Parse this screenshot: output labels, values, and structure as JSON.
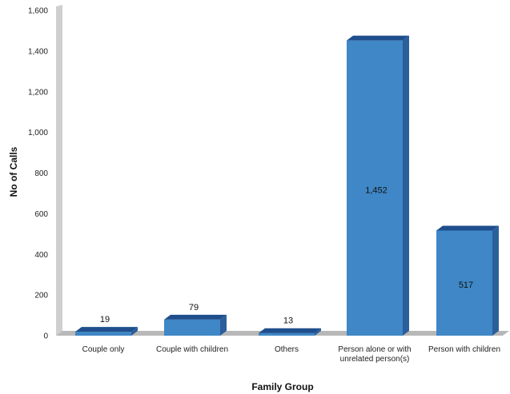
{
  "chart_data": {
    "type": "bar",
    "categories": [
      [
        "Couple only"
      ],
      [
        "Couple with children"
      ],
      [
        "Others"
      ],
      [
        "Person alone or with",
        "unrelated person(s)"
      ],
      [
        "Person with children"
      ]
    ],
    "values": [
      19,
      79,
      13,
      1452,
      517
    ],
    "value_labels": [
      "19",
      "79",
      "13",
      "1,452",
      "517"
    ],
    "ytick_labels": [
      "0",
      "200",
      "400",
      "600",
      "800",
      "1,000",
      "1,200",
      "1,400",
      "1,600"
    ],
    "ylim": [
      0,
      1600
    ],
    "xlabel": "Family Group",
    "ylabel": "No of Calls",
    "colors": {
      "bar_front": "#3f87c6",
      "bar_top": "#1f4e8c",
      "bar_side": "#2a5f9c",
      "wall": "#c8c8c8",
      "floor": "#b4b4b4"
    }
  }
}
